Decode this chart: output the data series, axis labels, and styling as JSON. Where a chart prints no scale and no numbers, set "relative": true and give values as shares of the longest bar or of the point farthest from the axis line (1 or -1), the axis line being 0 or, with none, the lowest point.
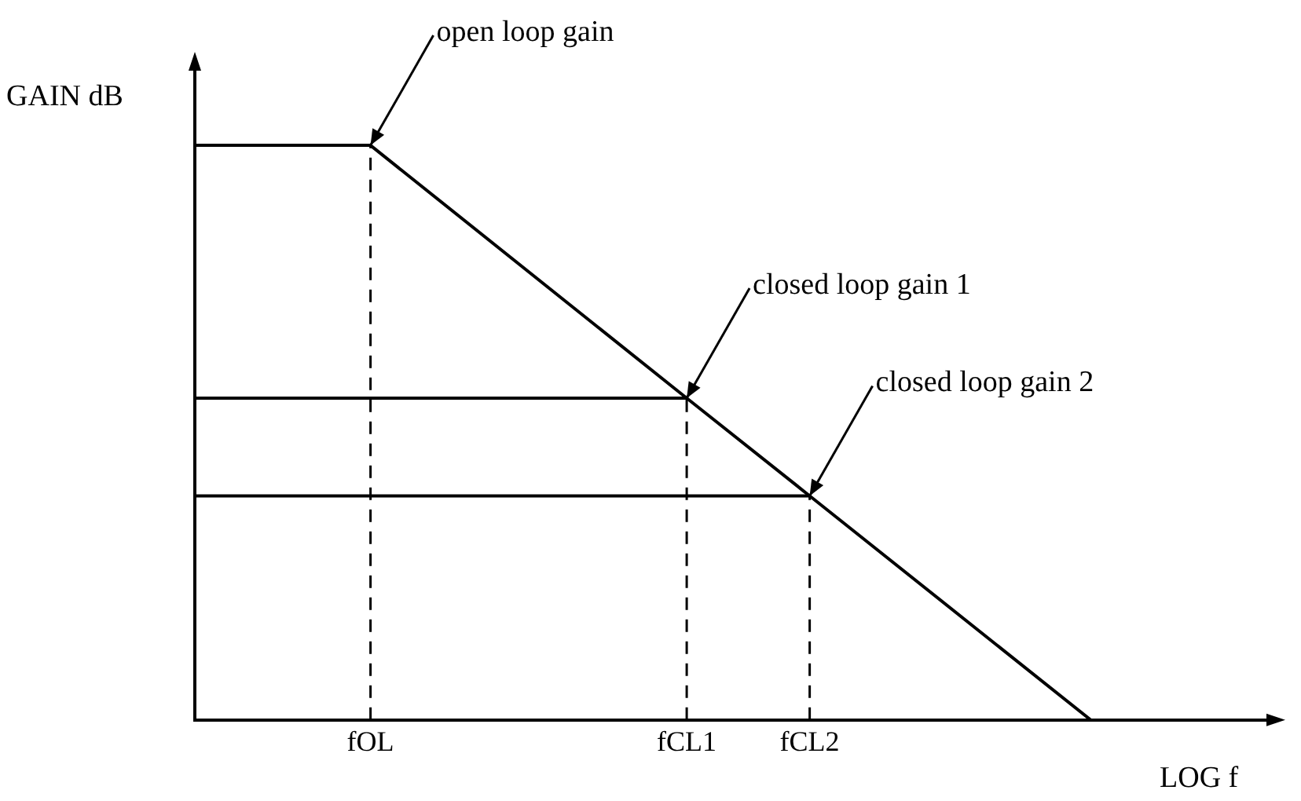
{
  "chart_data": {
    "type": "line",
    "relative": true,
    "ylabel": "GAIN dB",
    "xlabel": "LOG f",
    "categories": [
      null,
      null,
      null,
      null,
      null,
      null,
      null,
      null,
      null,
      null,
      "fOL",
      null,
      null,
      null,
      null,
      null,
      null,
      null,
      null,
      null,
      null,
      null,
      null,
      null,
      null,
      null,
      null,
      null,
      "fCL1",
      null,
      null,
      null,
      null,
      null,
      null,
      "fCL2",
      null,
      null,
      null,
      null,
      null,
      null,
      null,
      null,
      null,
      null,
      null,
      null,
      null,
      null,
      null,
      null,
      null,
      null,
      null,
      null,
      null,
      null,
      null,
      null,
      null,
      null
    ],
    "series": [
      {
        "color": "#000000",
        "values": [
          1,
          null,
          null,
          null,
          null,
          null,
          null,
          null,
          null,
          null,
          1,
          null,
          null,
          null,
          null,
          null,
          null,
          null,
          null,
          null,
          null,
          null,
          null,
          null,
          null,
          null,
          null,
          null,
          0.56,
          null,
          null,
          null,
          null,
          null,
          null,
          0.39,
          null,
          null,
          null,
          null,
          null,
          null,
          null,
          null,
          null,
          null,
          null,
          null,
          null,
          null,
          null,
          0,
          null,
          null,
          null,
          null,
          null,
          null,
          null,
          null,
          null,
          null
        ]
      },
      {
        "color": "#000000",
        "values": [
          0.56,
          null,
          null,
          null,
          null,
          null,
          null,
          null,
          null,
          null,
          null,
          null,
          null,
          null,
          null,
          null,
          null,
          null,
          null,
          null,
          null,
          null,
          null,
          null,
          null,
          null,
          null,
          null,
          0.56,
          null,
          null,
          null,
          null,
          null,
          null,
          null,
          null,
          null,
          null,
          null,
          null,
          null,
          null,
          null,
          null,
          null,
          null,
          null,
          null,
          null,
          null,
          null,
          null,
          null,
          null,
          null,
          null,
          null,
          null,
          null,
          null,
          null
        ]
      },
      {
        "color": "#000000",
        "values": [
          0.39,
          null,
          null,
          null,
          null,
          null,
          null,
          null,
          null,
          null,
          null,
          null,
          null,
          null,
          null,
          null,
          null,
          null,
          null,
          null,
          null,
          null,
          null,
          null,
          null,
          null,
          null,
          null,
          null,
          null,
          null,
          null,
          null,
          null,
          null,
          0.39,
          null,
          null,
          null,
          null,
          null,
          null,
          null,
          null,
          null,
          null,
          null,
          null,
          null,
          null,
          null,
          null,
          null,
          null,
          null,
          null,
          null,
          null,
          null,
          null,
          null,
          null
        ]
      }
    ],
    "ref_lines": [
      {
        "axis": "x",
        "value": "fOL",
        "line_style": "dashed"
      },
      {
        "axis": "x",
        "value": "fCL1",
        "line_style": "dashed"
      },
      {
        "axis": "x",
        "value": "fCL2",
        "line_style": "dashed"
      }
    ],
    "annotations": [
      {
        "text": "open loop gain",
        "x": "fOL",
        "y": 1
      },
      {
        "text": "closed loop gain 1",
        "x": "fCL1",
        "y": 0.56
      },
      {
        "text": "closed loop gain 2",
        "x": "fCL2",
        "y": 0.39
      }
    ],
    "grid": false,
    "legend": false,
    "marker": "none",
    "line_style": "solid"
  }
}
